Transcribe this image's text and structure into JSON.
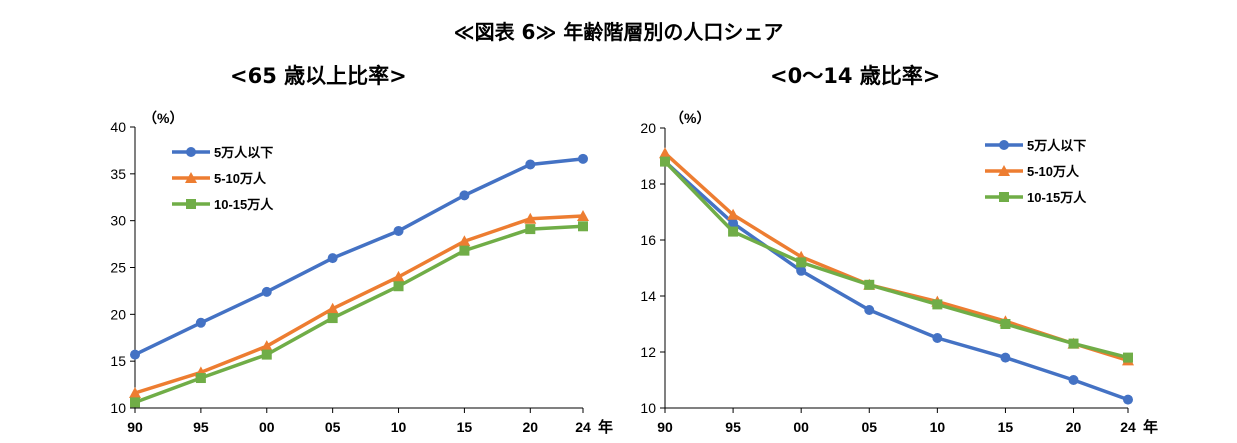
{
  "title": "≪図表 6≫ 年齢階層別の人口シェア",
  "chart_data": [
    {
      "type": "line",
      "title": "<65 歳以上比率>",
      "unit_label": "（%）",
      "x_suffix": "年",
      "categories": [
        "90",
        "95",
        "00",
        "05",
        "10",
        "15",
        "20",
        "24"
      ],
      "x": [
        1990,
        1995,
        2000,
        2005,
        2010,
        2015,
        2020,
        2024
      ],
      "ylim": [
        10,
        40
      ],
      "yticks": [
        10,
        15,
        20,
        25,
        30,
        35,
        40
      ],
      "legend_position": "top-left",
      "series": [
        {
          "name": "5万人以下",
          "color": "#4472C4",
          "marker": "circle",
          "values": [
            15.7,
            19.1,
            22.4,
            26.0,
            28.9,
            32.7,
            36.0,
            36.6
          ]
        },
        {
          "name": "5-10万人",
          "color": "#ED7D31",
          "marker": "triangle",
          "values": [
            11.6,
            13.8,
            16.6,
            20.6,
            24.0,
            27.8,
            30.2,
            30.5
          ]
        },
        {
          "name": "10-15万人",
          "color": "#70AD47",
          "marker": "square",
          "values": [
            10.6,
            13.2,
            15.7,
            19.6,
            23.0,
            26.8,
            29.1,
            29.4
          ]
        }
      ]
    },
    {
      "type": "line",
      "title": "<0～14 歳比率>",
      "unit_label": "（%）",
      "x_suffix": "年",
      "categories": [
        "90",
        "95",
        "00",
        "05",
        "10",
        "15",
        "20",
        "24"
      ],
      "x": [
        1990,
        1995,
        2000,
        2005,
        2010,
        2015,
        2020,
        2024
      ],
      "ylim": [
        10,
        20
      ],
      "yticks": [
        10,
        12,
        14,
        16,
        18,
        20
      ],
      "legend_position": "top-right",
      "series": [
        {
          "name": "5万人以下",
          "color": "#4472C4",
          "marker": "circle",
          "values": [
            18.8,
            16.6,
            14.9,
            13.5,
            12.5,
            11.8,
            11.0,
            10.3
          ]
        },
        {
          "name": "5-10万人",
          "color": "#ED7D31",
          "marker": "triangle",
          "values": [
            19.1,
            16.9,
            15.4,
            14.4,
            13.8,
            13.1,
            12.3,
            11.7
          ]
        },
        {
          "name": "10-15万人",
          "color": "#70AD47",
          "marker": "square",
          "values": [
            18.8,
            16.3,
            15.2,
            14.4,
            13.7,
            13.0,
            12.3,
            11.8
          ]
        }
      ]
    }
  ]
}
